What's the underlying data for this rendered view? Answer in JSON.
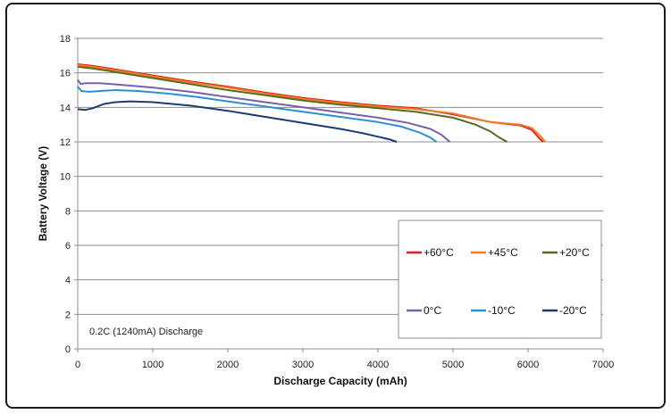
{
  "chart_data": {
    "type": "line",
    "title": "",
    "xlabel": "Discharge Capacity (mAh)",
    "ylabel": "Battery Voltage (V)",
    "xlim": [
      0,
      7000
    ],
    "ylim": [
      0,
      18
    ],
    "xticks": [
      0,
      1000,
      2000,
      3000,
      4000,
      5000,
      6000,
      7000
    ],
    "yticks": [
      0,
      2,
      4,
      6,
      8,
      10,
      12,
      14,
      16,
      18
    ],
    "grid": true,
    "legend_position": "lower-right",
    "annotation": "0.2C (1240mA) Discharge",
    "series": [
      {
        "name": "+60°C",
        "color": "#e0201c",
        "x": [
          0,
          200,
          500,
          1000,
          1500,
          2000,
          2500,
          3000,
          3500,
          4000,
          4500,
          5000,
          5500,
          5900,
          6050,
          6150,
          6200
        ],
        "y": [
          16.5,
          16.4,
          16.2,
          15.85,
          15.5,
          15.2,
          14.85,
          14.55,
          14.3,
          14.1,
          13.95,
          13.6,
          13.15,
          12.95,
          12.7,
          12.2,
          12.0
        ]
      },
      {
        "name": "+45°C",
        "color": "#f07b22",
        "x": [
          0,
          200,
          500,
          1000,
          1500,
          2000,
          2500,
          3000,
          3500,
          4000,
          4500,
          5000,
          5500,
          5900,
          6050,
          6150,
          6230
        ],
        "y": [
          16.45,
          16.35,
          16.15,
          15.8,
          15.45,
          15.15,
          14.8,
          14.5,
          14.25,
          14.05,
          13.9,
          13.65,
          13.15,
          13.0,
          12.8,
          12.4,
          12.0
        ]
      },
      {
        "name": "+20°C",
        "color": "#5a6a1e",
        "x": [
          0,
          200,
          500,
          1000,
          1500,
          2000,
          2500,
          3000,
          3500,
          4000,
          4500,
          5000,
          5300,
          5500,
          5600,
          5720
        ],
        "y": [
          16.35,
          16.25,
          16.05,
          15.7,
          15.35,
          15.0,
          14.7,
          14.4,
          14.15,
          13.95,
          13.75,
          13.4,
          13.0,
          12.6,
          12.3,
          12.0
        ]
      },
      {
        "name": "0°C",
        "color": "#7b5fa8",
        "x": [
          0,
          40,
          100,
          300,
          600,
          1000,
          1500,
          2000,
          2500,
          3000,
          3500,
          4000,
          4400,
          4700,
          4850,
          4960
        ],
        "y": [
          15.6,
          15.35,
          15.4,
          15.4,
          15.3,
          15.15,
          14.9,
          14.6,
          14.3,
          14.0,
          13.7,
          13.4,
          13.1,
          12.75,
          12.4,
          12.0
        ]
      },
      {
        "name": "-10°C",
        "color": "#2b8fd6",
        "x": [
          0,
          50,
          150,
          300,
          500,
          800,
          1200,
          1600,
          2000,
          2500,
          3000,
          3500,
          4000,
          4300,
          4550,
          4700,
          4780
        ],
        "y": [
          15.2,
          14.95,
          14.9,
          14.95,
          15.0,
          14.95,
          14.8,
          14.6,
          14.35,
          14.05,
          13.75,
          13.45,
          13.15,
          12.9,
          12.55,
          12.25,
          12.0
        ]
      },
      {
        "name": "-20°C",
        "color": "#173d6e",
        "x": [
          0,
          100,
          200,
          350,
          500,
          700,
          1000,
          1500,
          2000,
          2500,
          3000,
          3500,
          3800,
          4000,
          4150,
          4250
        ],
        "y": [
          13.9,
          13.85,
          13.95,
          14.2,
          14.3,
          14.35,
          14.3,
          14.1,
          13.8,
          13.45,
          13.1,
          12.75,
          12.5,
          12.3,
          12.15,
          12.0
        ]
      }
    ]
  }
}
